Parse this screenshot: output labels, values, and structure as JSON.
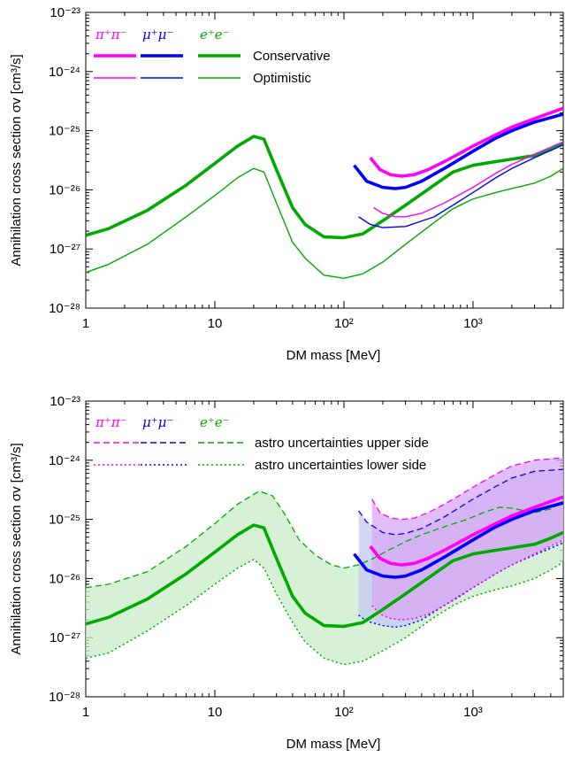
{
  "chart_data": [
    {
      "type": "line",
      "xlabel": "DM mass [MeV]",
      "ylabel": "Annihilation cross section σv [cm³/s]",
      "xscale": "log",
      "yscale": "log",
      "xlim": [
        1,
        5000
      ],
      "ylim": [
        1e-28,
        1e-23
      ],
      "x_ticks": [
        "1",
        "10",
        "10²",
        "10³"
      ],
      "y_ticks": [
        "10⁻²⁸",
        "10⁻²⁷",
        "10⁻²⁶",
        "10⁻²⁵",
        "10⁻²⁴",
        "10⁻²³"
      ],
      "legend": {
        "channels": [
          {
            "label": "π⁺π⁻",
            "color": "#ff00ff"
          },
          {
            "label": "μ⁺μ⁻",
            "color": "#0000ff"
          },
          {
            "label": "e⁺e⁻",
            "color": "#00aa00"
          }
        ],
        "styles": [
          {
            "label": "Conservative",
            "line": "thick"
          },
          {
            "label": "Optimistic",
            "line": "thin"
          }
        ]
      },
      "series": [
        {
          "channel": "e⁺e⁻",
          "style": "Conservative",
          "color": "#00aa00",
          "x": [
            1,
            1.5,
            3,
            6,
            10,
            15,
            20,
            24,
            30,
            40,
            50,
            70,
            100,
            140,
            200,
            300,
            500,
            700,
            1000,
            1500,
            2000,
            3000,
            4000,
            5000
          ],
          "y": [
            1.7e-27,
            2.2e-27,
            4.5e-27,
            1.2e-26,
            2.8e-26,
            5.5e-26,
            8e-26,
            7.2e-26,
            2.2e-26,
            5e-27,
            2.6e-27,
            1.6e-27,
            1.55e-27,
            1.8e-27,
            3e-27,
            5.5e-27,
            1.2e-26,
            2e-26,
            2.6e-26,
            3e-26,
            3.3e-26,
            3.8e-26,
            4.8e-26,
            6e-26
          ]
        },
        {
          "channel": "e⁺e⁻",
          "style": "Optimistic",
          "color": "#00aa00",
          "x": [
            1,
            1.5,
            3,
            6,
            10,
            15,
            20,
            24,
            30,
            40,
            50,
            70,
            100,
            140,
            200,
            300,
            500,
            700,
            1000,
            1500,
            2000,
            3000,
            4000,
            5000
          ],
          "y": [
            4e-28,
            5.5e-28,
            1.2e-27,
            3.5e-27,
            8e-27,
            1.6e-26,
            2.3e-26,
            2e-26,
            6e-27,
            1.3e-27,
            7e-28,
            3.6e-28,
            3.2e-28,
            3.8e-28,
            6e-28,
            1.2e-27,
            2.8e-27,
            4.8e-27,
            7e-27,
            9e-27,
            1.05e-26,
            1.3e-26,
            1.7e-26,
            2.3e-26
          ]
        },
        {
          "channel": "μ⁺μ⁻",
          "style": "Conservative",
          "color": "#0000ff",
          "x": [
            120,
            150,
            200,
            250,
            300,
            400,
            600,
            1000,
            1500,
            2000,
            3000,
            5000
          ],
          "y": [
            2.6e-26,
            1.4e-26,
            1.1e-26,
            1.05e-26,
            1.1e-26,
            1.4e-26,
            2.3e-26,
            4.5e-26,
            7.5e-26,
            1e-25,
            1.4e-25,
            1.9e-25
          ]
        },
        {
          "channel": "μ⁺μ⁻",
          "style": "Optimistic",
          "color": "#0000ff",
          "x": [
            130,
            160,
            200,
            300,
            500,
            700,
            1000,
            1500,
            2000,
            3000,
            5000
          ],
          "y": [
            3.5e-27,
            2.6e-27,
            2.3e-27,
            2.4e-27,
            3.5e-27,
            5.5e-27,
            9e-27,
            1.6e-26,
            2.3e-26,
            3.5e-26,
            5.8e-26
          ]
        },
        {
          "channel": "π⁺π⁻",
          "style": "Conservative",
          "color": "#ff00ff",
          "x": [
            160,
            190,
            230,
            280,
            350,
            450,
            600,
            800,
            1000,
            1500,
            2000,
            3000,
            5000
          ],
          "y": [
            3.5e-26,
            2.2e-26,
            1.8e-26,
            1.7e-26,
            1.8e-26,
            2.2e-26,
            3e-26,
            4.2e-26,
            5.5e-26,
            8.5e-26,
            1.15e-25,
            1.6e-25,
            2.4e-25
          ]
        },
        {
          "channel": "π⁺π⁻",
          "style": "Optimistic",
          "color": "#ff00ff",
          "x": [
            170,
            200,
            250,
            300,
            400,
            600,
            1000,
            1500,
            2000,
            3000,
            5000
          ],
          "y": [
            5e-27,
            4e-27,
            3.5e-27,
            3.5e-27,
            4e-27,
            6e-27,
            1.1e-26,
            1.9e-26,
            2.7e-26,
            4e-26,
            6.5e-26
          ]
        }
      ]
    },
    {
      "type": "area",
      "xlabel": "DM mass [MeV]",
      "ylabel": "Annihilation cross section σv [cm³/s]",
      "xscale": "log",
      "yscale": "log",
      "xlim": [
        1,
        5000
      ],
      "ylim": [
        1e-28,
        1e-23
      ],
      "x_ticks": [
        "1",
        "10",
        "10²",
        "10³"
      ],
      "y_ticks": [
        "10⁻²⁸",
        "10⁻²⁷",
        "10⁻²⁶",
        "10⁻²⁵",
        "10⁻²⁴",
        "10⁻²³"
      ],
      "legend": {
        "channels": [
          {
            "label": "π⁺π⁻",
            "color": "#ff00ff"
          },
          {
            "label": "μ⁺μ⁻",
            "color": "#0000ff"
          },
          {
            "label": "e⁺e⁻",
            "color": "#00aa00"
          }
        ],
        "styles": [
          {
            "label": "astro uncertainties upper side",
            "line": "dashed"
          },
          {
            "label": "astro uncertainties lower side",
            "line": "dotted"
          }
        ]
      },
      "series": [
        {
          "channel": "e⁺e⁻",
          "color": "#00aa00",
          "fill": "#c8ecc8",
          "x": [
            1,
            1.5,
            3,
            6,
            10,
            15,
            20,
            24,
            30,
            40,
            50,
            70,
            100,
            140,
            200,
            300,
            500,
            700,
            1000,
            1500,
            2000,
            3000,
            4000,
            5000
          ],
          "y": [
            1.7e-27,
            2.2e-27,
            4.5e-27,
            1.2e-26,
            2.8e-26,
            5.5e-26,
            8e-26,
            7.2e-26,
            2.2e-26,
            5e-27,
            2.6e-27,
            1.6e-27,
            1.55e-27,
            1.8e-27,
            3e-27,
            5.5e-27,
            1.2e-26,
            2e-26,
            2.6e-26,
            3e-26,
            3.3e-26,
            3.8e-26,
            4.8e-26,
            6e-26
          ],
          "upper_x": [
            1,
            1.5,
            3,
            6,
            10,
            15,
            22,
            28,
            35,
            45,
            60,
            80,
            100,
            130,
            170,
            220,
            300,
            400,
            600,
            900,
            1200,
            1600,
            2000,
            2500,
            3000,
            4000,
            5000
          ],
          "upper_y": [
            7e-27,
            8e-27,
            1.3e-26,
            3.5e-26,
            8.5e-26,
            1.8e-25,
            3e-25,
            2.5e-25,
            1.2e-25,
            4.5e-26,
            2.5e-26,
            1.7e-26,
            1.5e-26,
            1.7e-26,
            2.2e-26,
            3e-26,
            4.2e-26,
            5.5e-26,
            7.5e-26,
            1e-25,
            1.3e-25,
            1.6e-25,
            1.55e-25,
            1.4e-25,
            1.3e-25,
            1.5e-25,
            2e-25
          ],
          "lower_x": [
            1,
            1.5,
            3,
            6,
            10,
            15,
            20,
            24,
            30,
            40,
            50,
            70,
            100,
            140,
            200,
            300,
            500,
            700,
            1000,
            1500,
            2000,
            3000,
            4000,
            5000
          ],
          "lower_y": [
            4.5e-28,
            5.5e-28,
            1.3e-27,
            3.5e-27,
            8e-27,
            1.5e-26,
            2.1e-26,
            1.5e-26,
            5.5e-27,
            1.8e-27,
            8.5e-28,
            4.5e-28,
            3.5e-28,
            4e-28,
            6e-28,
            1e-27,
            2.2e-27,
            3.5e-27,
            5e-27,
            6.5e-27,
            7.5e-27,
            1e-26,
            1.4e-26,
            1.9e-26
          ]
        },
        {
          "channel": "μ⁺μ⁻",
          "color": "#0000ff",
          "fill": "#c4c8f4",
          "x": [
            120,
            150,
            200,
            250,
            300,
            400,
            600,
            1000,
            1500,
            2000,
            3000,
            5000
          ],
          "y": [
            2.6e-26,
            1.4e-26,
            1.1e-26,
            1.05e-26,
            1.1e-26,
            1.4e-26,
            2.3e-26,
            4.5e-26,
            7.5e-26,
            1e-25,
            1.4e-25,
            1.9e-25
          ],
          "upper_x": [
            130,
            150,
            200,
            250,
            300,
            400,
            600,
            1000,
            1500,
            2000,
            3000,
            5000
          ],
          "upper_y": [
            1.4e-25,
            9e-26,
            6e-26,
            5.5e-26,
            5.8e-26,
            7e-26,
            1.1e-25,
            2.2e-25,
            3.6e-25,
            5e-25,
            6.5e-25,
            7e-25
          ],
          "lower_x": [
            130,
            150,
            200,
            250,
            300,
            400,
            600,
            1000,
            1500,
            2000,
            3000,
            5000
          ],
          "lower_y": [
            2.4e-27,
            1.9e-27,
            1.6e-27,
            1.5e-27,
            1.6e-27,
            2e-27,
            3.5e-27,
            7e-27,
            1.2e-26,
            1.7e-26,
            2.5e-26,
            4e-26
          ]
        },
        {
          "channel": "π⁺π⁻",
          "color": "#ff00ff",
          "fill": "#d8a8f4",
          "x": [
            160,
            190,
            230,
            280,
            350,
            450,
            600,
            800,
            1000,
            1500,
            2000,
            3000,
            5000
          ],
          "y": [
            3.5e-26,
            2.2e-26,
            1.8e-26,
            1.7e-26,
            1.8e-26,
            2.2e-26,
            3e-26,
            4.2e-26,
            5.5e-26,
            8.5e-26,
            1.15e-25,
            1.6e-25,
            2.4e-25
          ],
          "upper_x": [
            165,
            190,
            230,
            280,
            350,
            450,
            600,
            800,
            1000,
            1500,
            2000,
            3000,
            5000
          ],
          "upper_y": [
            2.2e-25,
            1.3e-25,
            1.05e-25,
            1e-25,
            1.05e-25,
            1.3e-25,
            1.8e-25,
            2.6e-25,
            3.5e-25,
            5.8e-25,
            8e-25,
            1e-24,
            1.1e-24
          ],
          "lower_x": [
            165,
            190,
            230,
            280,
            350,
            450,
            600,
            800,
            1000,
            1500,
            2000,
            3000,
            5000
          ],
          "lower_y": [
            3.5e-27,
            2.5e-27,
            2.1e-27,
            2e-27,
            2.1e-27,
            2.5e-27,
            3.5e-27,
            5e-27,
            7e-27,
            1.2e-26,
            1.7e-26,
            2.6e-26,
            4.5e-26
          ]
        }
      ]
    }
  ]
}
